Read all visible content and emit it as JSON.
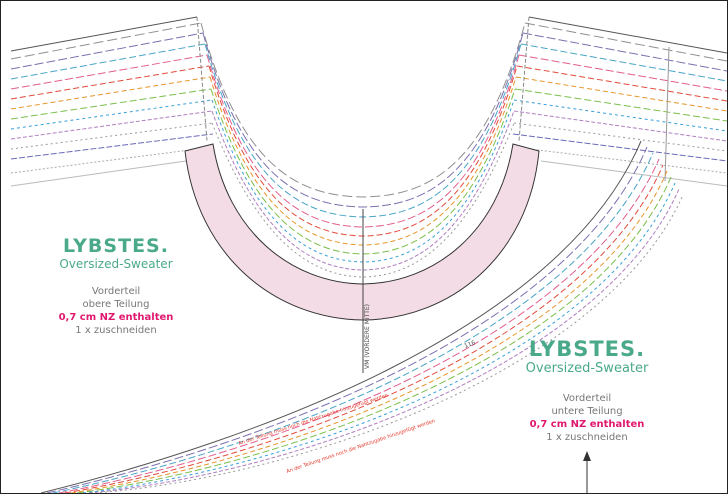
{
  "colors": {
    "brand": "#4aa98a",
    "info_text": "#777777",
    "nz_text": "#e0196f",
    "neckband_fill": "#f3dce5",
    "outline": "#333333",
    "warning_text": "#e43a2c"
  },
  "left_label": {
    "brand": "LYBSTES.",
    "product": "Oversized-Sweater",
    "piece": "Vorderteil",
    "part": "obere Teilung",
    "seam": "0,7 cm NZ enthalten",
    "cut": "1 x zuschneiden"
  },
  "right_label": {
    "brand": "LYBSTES.",
    "product": "Oversized-Sweater",
    "piece": "Vorderteil",
    "part": "untere Teilung",
    "seam": "0,7 cm NZ enthalten",
    "cut": "1 x zuschneiden"
  },
  "center_line_label": "VM (VORDERE MITTE)",
  "size_marker": "116",
  "warning_1": "An der Teilung muss noch die Nahtzugabe hinzugefügt werden",
  "warning_2": "An der Teilung muss noch die Nahtzugabe hinzugefügt werden"
}
